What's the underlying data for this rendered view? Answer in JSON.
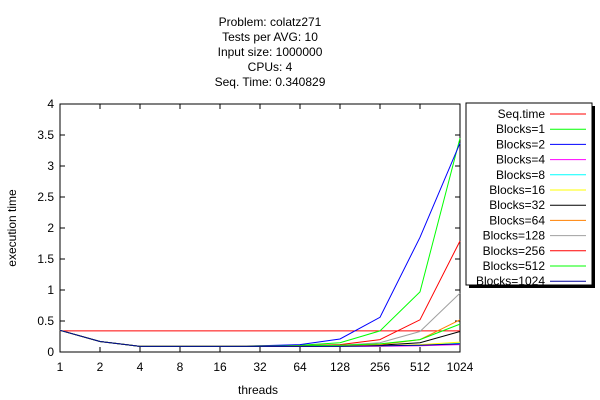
{
  "chart_data": {
    "type": "line",
    "title_lines": [
      "Problem: colatz271",
      "Tests per AVG: 10",
      "Input size: 1000000",
      "CPUs: 4",
      "Seq. Time: 0.340829"
    ],
    "xlabel": "threads",
    "ylabel": "execution time",
    "x": [
      "1",
      "2",
      "4",
      "8",
      "16",
      "32",
      "64",
      "128",
      "256",
      "512",
      "1024"
    ],
    "y_ticks": [
      "0",
      "0.5",
      "1",
      "1.5",
      "2",
      "2.5",
      "3",
      "3.5",
      "4"
    ],
    "ylim": [
      0,
      4
    ],
    "grid": false,
    "legend_position": "right",
    "series": [
      {
        "name": "Seq.time",
        "color": "#ff0000",
        "values": [
          0.3408,
          0.3408,
          0.3408,
          0.3408,
          0.3408,
          0.3408,
          0.3408,
          0.3408,
          0.3408,
          0.3408,
          0.3408
        ]
      },
      {
        "name": "Blocks=1",
        "color": "#00ff00",
        "values": [
          0.35,
          0.17,
          0.09,
          0.09,
          0.09,
          0.1,
          0.11,
          0.15,
          0.34,
          0.97,
          3.45
        ]
      },
      {
        "name": "Blocks=2",
        "color": "#0000ff",
        "values": [
          0.35,
          0.17,
          0.09,
          0.09,
          0.09,
          0.1,
          0.12,
          0.21,
          0.56,
          1.85,
          3.37
        ]
      },
      {
        "name": "Blocks=4",
        "color": "#ff00ff",
        "values": [
          0.35,
          0.17,
          0.09,
          0.09,
          0.09,
          0.09,
          0.09,
          0.09,
          0.09,
          0.1,
          0.12
        ]
      },
      {
        "name": "Blocks=8",
        "color": "#00ffff",
        "values": [
          0.35,
          0.17,
          0.09,
          0.09,
          0.09,
          0.09,
          0.09,
          0.09,
          0.1,
          0.11,
          0.14
        ]
      },
      {
        "name": "Blocks=16",
        "color": "#ffff00",
        "values": [
          0.35,
          0.17,
          0.09,
          0.09,
          0.09,
          0.09,
          0.09,
          0.09,
          0.1,
          0.12,
          0.16
        ]
      },
      {
        "name": "Blocks=32",
        "color": "#000000",
        "values": [
          0.35,
          0.17,
          0.09,
          0.09,
          0.09,
          0.09,
          0.09,
          0.1,
          0.11,
          0.15,
          0.33
        ]
      },
      {
        "name": "Blocks=64",
        "color": "#ff8000",
        "values": [
          0.35,
          0.17,
          0.09,
          0.09,
          0.09,
          0.09,
          0.09,
          0.1,
          0.12,
          0.2,
          0.52
        ]
      },
      {
        "name": "Blocks=128",
        "color": "#a0a0a0",
        "values": [
          0.35,
          0.17,
          0.09,
          0.09,
          0.09,
          0.09,
          0.1,
          0.11,
          0.15,
          0.33,
          0.95
        ]
      },
      {
        "name": "Blocks=256",
        "color": "#ff0000",
        "values": [
          0.35,
          0.17,
          0.09,
          0.09,
          0.09,
          0.09,
          0.1,
          0.12,
          0.2,
          0.52,
          1.79
        ]
      },
      {
        "name": "Blocks=512",
        "color": "#00ff00",
        "values": [
          0.35,
          0.17,
          0.09,
          0.09,
          0.09,
          0.09,
          0.1,
          0.11,
          0.13,
          0.2,
          0.45
        ]
      },
      {
        "name": "Blocks=1024",
        "color": "#000099",
        "values": [
          0.35,
          0.17,
          0.09,
          0.09,
          0.09,
          0.09,
          0.09,
          0.09,
          0.1,
          0.11,
          0.13
        ]
      }
    ]
  }
}
